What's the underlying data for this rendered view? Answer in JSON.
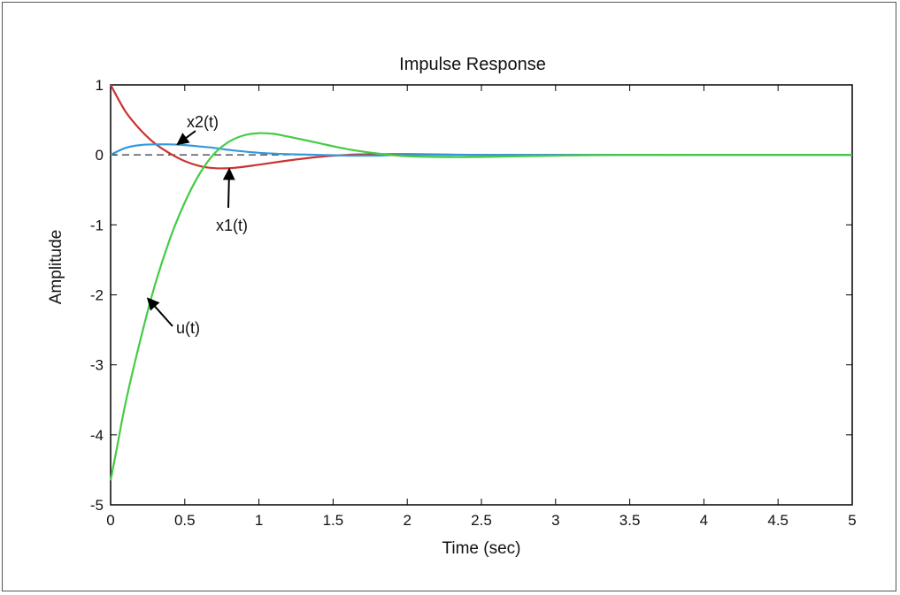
{
  "chart_data": {
    "type": "line",
    "title": "Impulse Response",
    "xlabel": "Time (sec)",
    "ylabel": "Amplitude",
    "xlim": [
      0,
      5
    ],
    "ylim": [
      -5,
      1
    ],
    "xticks": [
      0,
      0.5,
      1,
      1.5,
      2,
      2.5,
      3,
      3.5,
      4,
      4.5,
      5
    ],
    "xtick_labels": [
      "0",
      "0.5",
      "1",
      "1.5",
      "2",
      "2.5",
      "3",
      "3.5",
      "4",
      "4.5",
      "5"
    ],
    "yticks": [
      1,
      0,
      -1,
      -2,
      -3,
      -4,
      -5
    ],
    "ytick_labels": [
      "1",
      "0",
      "-1",
      "-2",
      "-3",
      "-4",
      "-5"
    ],
    "grid": false,
    "zero_line": "dashed",
    "series": [
      {
        "name": "x1(t)",
        "color": "#cc3333",
        "x": [
          0,
          0.1,
          0.2,
          0.3,
          0.4,
          0.5,
          0.6,
          0.7,
          0.8,
          0.9,
          1.0,
          1.2,
          1.4,
          1.6,
          1.8,
          2.0,
          2.5,
          3.0,
          3.5,
          4.0,
          4.5,
          5.0
        ],
        "y": [
          1.0,
          0.62,
          0.36,
          0.16,
          0.02,
          -0.09,
          -0.16,
          -0.19,
          -0.19,
          -0.17,
          -0.14,
          -0.08,
          -0.03,
          0.0,
          0.01,
          0.01,
          0.0,
          0.0,
          0.0,
          0.0,
          0.0,
          0.0
        ]
      },
      {
        "name": "x2(t)",
        "color": "#3399dd",
        "x": [
          0,
          0.1,
          0.2,
          0.3,
          0.4,
          0.5,
          0.6,
          0.7,
          0.8,
          1.0,
          1.2,
          1.4,
          1.6,
          1.8,
          2.0,
          2.5,
          3.0,
          3.5,
          4.0,
          4.5,
          5.0
        ],
        "y": [
          0.0,
          0.1,
          0.14,
          0.15,
          0.15,
          0.14,
          0.12,
          0.1,
          0.07,
          0.03,
          0.01,
          0.0,
          -0.01,
          -0.01,
          0.0,
          0.0,
          0.0,
          0.0,
          0.0,
          0.0,
          0.0
        ]
      },
      {
        "name": "u(t)",
        "color": "#44cc44",
        "x": [
          0,
          0.05,
          0.1,
          0.2,
          0.3,
          0.4,
          0.5,
          0.6,
          0.7,
          0.8,
          0.9,
          1.0,
          1.1,
          1.2,
          1.4,
          1.6,
          1.8,
          2.0,
          2.2,
          2.5,
          3.0,
          3.5,
          4.0,
          4.5,
          5.0
        ],
        "y": [
          -4.65,
          -4.1,
          -3.55,
          -2.65,
          -1.85,
          -1.2,
          -0.68,
          -0.27,
          0.02,
          0.19,
          0.28,
          0.31,
          0.3,
          0.26,
          0.17,
          0.08,
          0.02,
          -0.02,
          -0.03,
          -0.03,
          -0.01,
          0.0,
          0.0,
          0.0,
          0.0
        ]
      }
    ],
    "annotations": [
      {
        "text": "x2(t)",
        "target_x": 0.45,
        "target_y": 0.15
      },
      {
        "text": "x1(t)",
        "target_x": 0.8,
        "target_y": -0.2
      },
      {
        "text": "u(t)",
        "target_x": 0.25,
        "target_y": -2.05
      }
    ]
  }
}
